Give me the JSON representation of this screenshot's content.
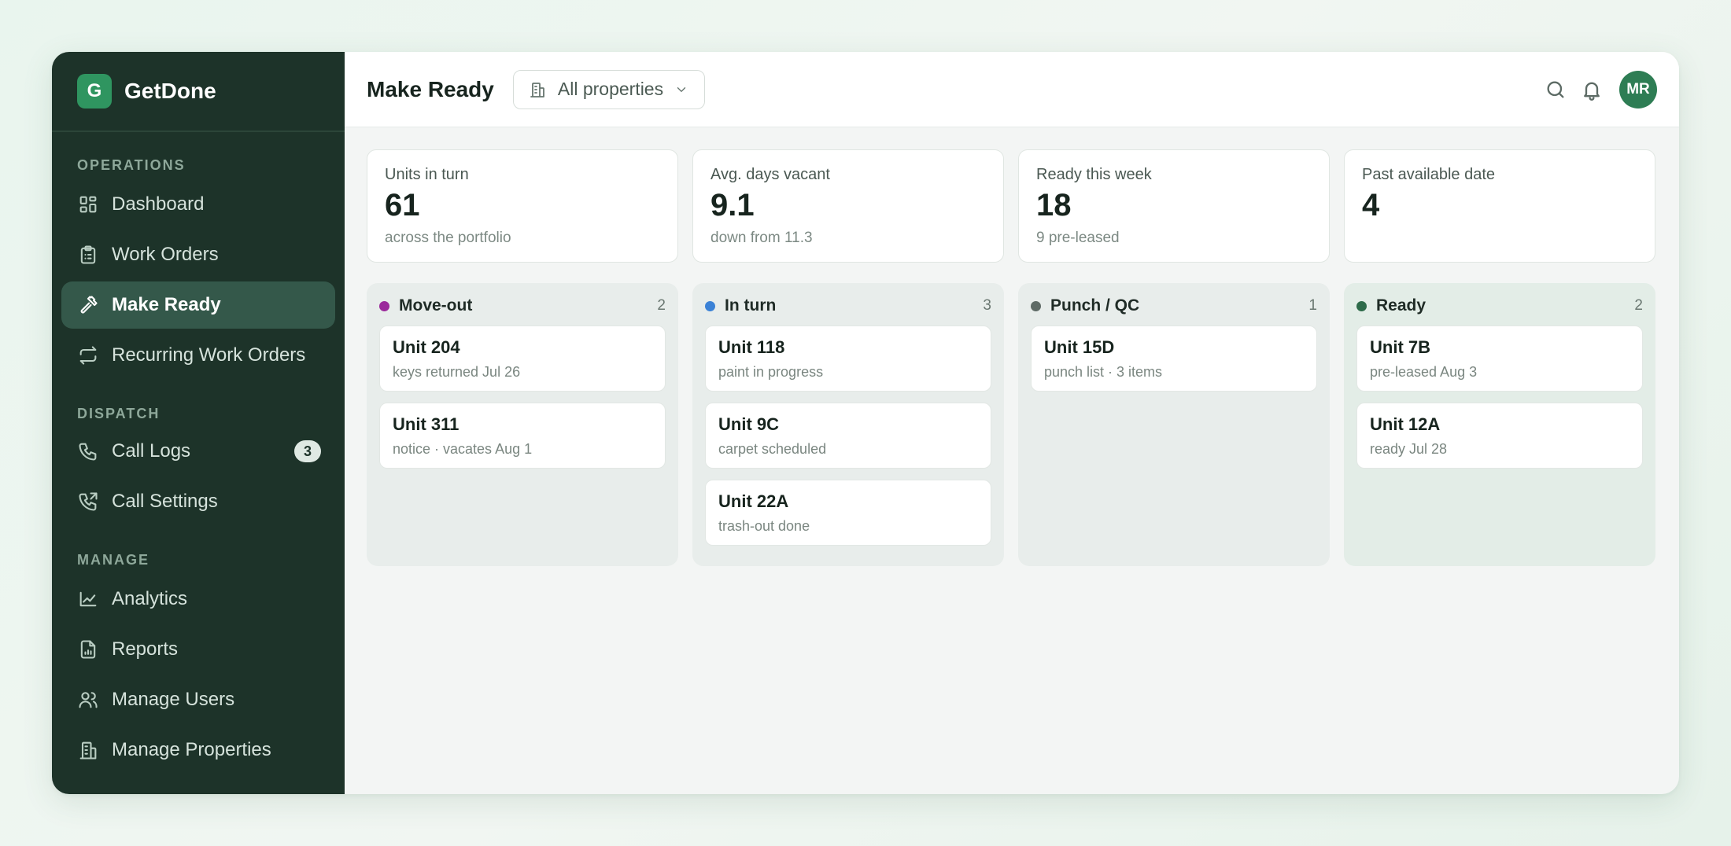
{
  "brand": {
    "logo_letter": "G",
    "name": "GetDone"
  },
  "sidebar": {
    "sections": [
      {
        "label": "OPERATIONS"
      },
      {
        "label": "DISPATCH"
      },
      {
        "label": "MANAGE"
      }
    ],
    "items": [
      {
        "label": "Dashboard",
        "icon": "dashboard-icon"
      },
      {
        "label": "Work Orders",
        "icon": "clipboard-icon"
      },
      {
        "label": "Make Ready",
        "icon": "hammer-icon",
        "active": true
      },
      {
        "label": "Recurring Work Orders",
        "icon": "repeat-icon"
      },
      {
        "label": "Call Logs",
        "icon": "phone-icon",
        "badge": "3"
      },
      {
        "label": "Call Settings",
        "icon": "phone-forward-icon"
      },
      {
        "label": "Analytics",
        "icon": "chart-line-icon"
      },
      {
        "label": "Reports",
        "icon": "file-report-icon"
      },
      {
        "label": "Manage Users",
        "icon": "users-icon"
      },
      {
        "label": "Manage Properties",
        "icon": "building-icon"
      }
    ]
  },
  "header": {
    "title": "Make Ready",
    "property_select": "All properties",
    "avatar_initials": "MR"
  },
  "stats": [
    {
      "label": "Units in turn",
      "value": "61",
      "sub": "across the portfolio"
    },
    {
      "label": "Avg. days vacant",
      "value": "9.1",
      "sub": "down from 11.3"
    },
    {
      "label": "Ready this week",
      "value": "18",
      "sub": "9 pre-leased"
    },
    {
      "label": "Past available date",
      "value": "4",
      "sub": ""
    }
  ],
  "board": {
    "columns": [
      {
        "title": "Move-out",
        "count": "2",
        "color": "#9b2a9b",
        "cards": [
          {
            "title": "Unit 204",
            "sub": "keys returned Jul 26"
          },
          {
            "title": "Unit 311",
            "sub": "notice · vacates Aug 1"
          }
        ]
      },
      {
        "title": "In turn",
        "count": "3",
        "color": "#3b82d6",
        "cards": [
          {
            "title": "Unit 118",
            "sub": "paint in progress"
          },
          {
            "title": "Unit 9C",
            "sub": "carpet scheduled"
          },
          {
            "title": "Unit 22A",
            "sub": "trash-out done"
          }
        ]
      },
      {
        "title": "Punch / QC",
        "count": "1",
        "color": "#5f6b66",
        "cards": [
          {
            "title": "Unit 15D",
            "sub": "punch list · 3 items"
          }
        ]
      },
      {
        "title": "Ready",
        "count": "2",
        "color": "#2e6b4a",
        "cards": [
          {
            "title": "Unit 7B",
            "sub": "pre-leased Aug 3"
          },
          {
            "title": "Unit 12A",
            "sub": "ready Jul 28"
          }
        ]
      }
    ]
  }
}
